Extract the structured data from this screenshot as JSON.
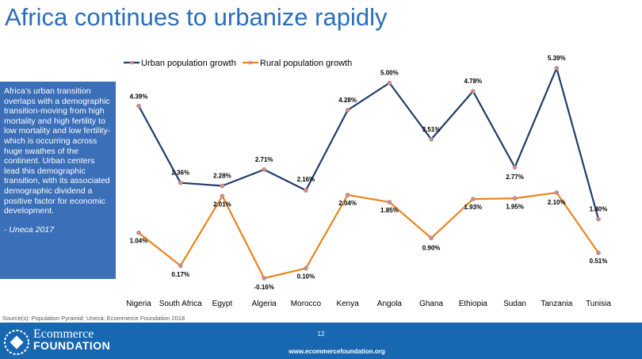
{
  "slide": {
    "title": "Africa continues to urbanize rapidly",
    "side_text": "Africa’s urban transition overlaps with a demographic transition-moving from high mortality and high fertility to low mortality and low fertility-which is occurring across huge swathes of the continent. Urban centers lead this demographic transition, with its associated demographic dividend a positive factor for economic development.",
    "attribution": "- Uneca 2017",
    "source": "Source(s):  Population Pyramid; Uneca; Ecommerce Foundation 2018"
  },
  "footer": {
    "logo_line1": "Ecommerce",
    "logo_line2": "FOUNDATION",
    "page_number": "12",
    "url": "www.ecommercefoundation.org"
  },
  "colors": {
    "urban": "#1f3d6b",
    "rural": "#e8851f",
    "marker": "#d88a8a",
    "title": "#2a6ebb",
    "box": "#3b6fb8",
    "footer": "#1767b1"
  },
  "chart_data": {
    "type": "line",
    "categories": [
      "Nigeria",
      "South Africa",
      "Egypt",
      "Algeria",
      "Morocco",
      "Kenya",
      "Angola",
      "Ghana",
      "Ethiopia",
      "Sudan",
      "Tanzania",
      "Tunisia"
    ],
    "series": [
      {
        "name": "Urban population growth",
        "values": [
          4.39,
          2.36,
          2.28,
          2.71,
          2.16,
          4.28,
          5.0,
          3.51,
          4.78,
          2.77,
          5.39,
          1.4
        ],
        "labels": [
          "4.39%",
          "2.36%",
          "2.28%",
          "2.71%",
          "2.16%",
          "4.28%",
          "5.00%",
          "3.51%",
          "4.78%",
          "2.77%",
          "5.39%",
          "1.40%"
        ]
      },
      {
        "name": "Rural population growth",
        "values": [
          1.04,
          0.17,
          2.01,
          -0.16,
          0.1,
          2.04,
          1.85,
          0.9,
          1.93,
          1.95,
          2.1,
          0.51
        ],
        "labels": [
          "1.04%",
          "0.17%",
          "2.01%",
          "-0.16%",
          "0.10%",
          "2.04%",
          "1.85%",
          "0.90%",
          "1.93%",
          "1.95%",
          "2.10%",
          "0.51%"
        ]
      }
    ],
    "ylim": [
      -0.16,
      5.39
    ],
    "grid": false,
    "legend": "top-left"
  }
}
